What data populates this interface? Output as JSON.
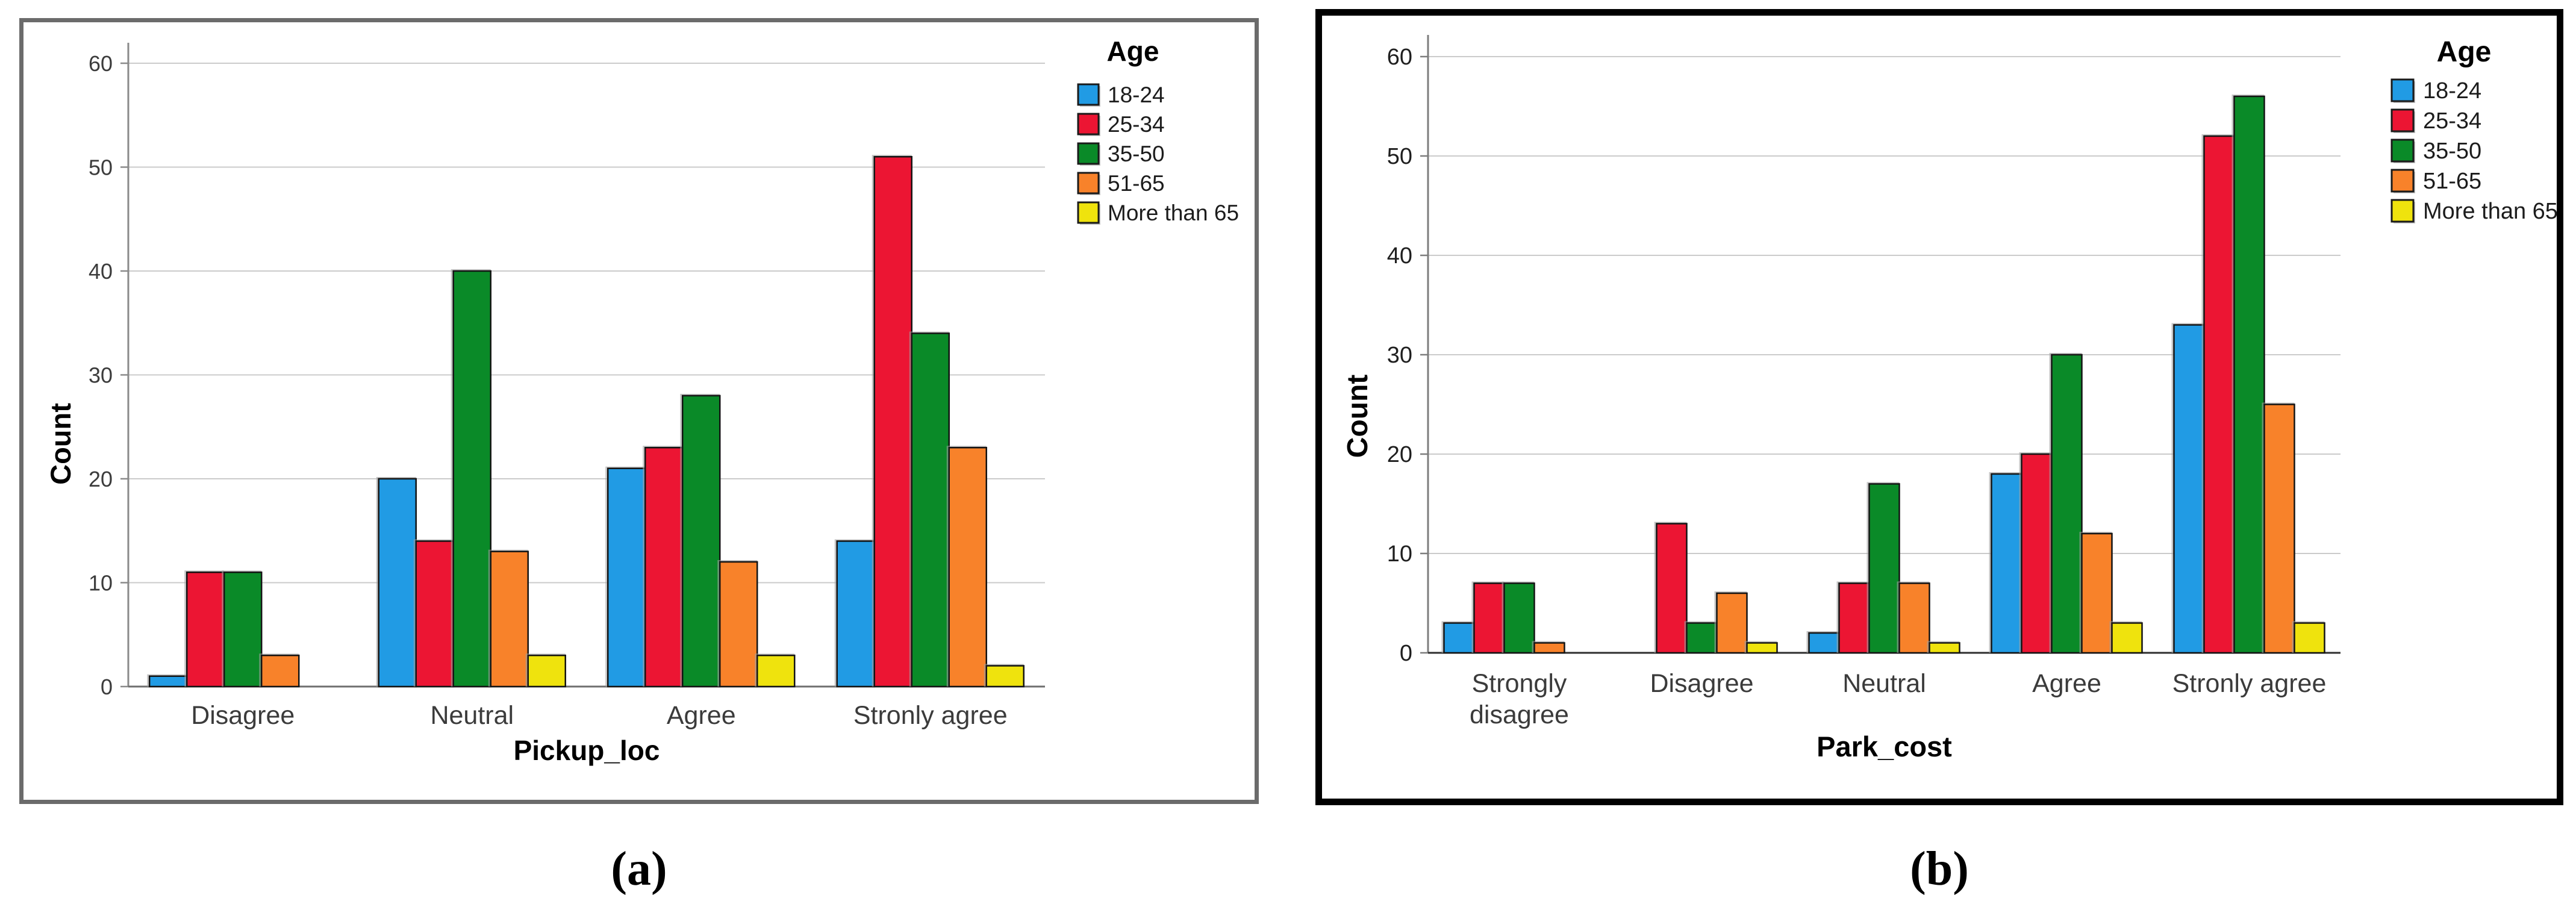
{
  "page": {
    "background": "#ffffff",
    "captions": {
      "a": "(a)",
      "b": "(b)"
    }
  },
  "chart_data": [
    {
      "type": "bar",
      "panel": "a",
      "title": "",
      "ylabel": "Count",
      "xlabel": "Pickup_loc",
      "ylim": [
        0,
        63
      ],
      "yticks": [
        0,
        10,
        20,
        30,
        40,
        50,
        60
      ],
      "grid": true,
      "legend_position": "right-top",
      "legend_title": "Age",
      "categories": [
        "Disagree",
        "Neutral",
        "Agree",
        "Stronly agree"
      ],
      "category_lines": [
        [
          "Disagree"
        ],
        [
          "Neutral"
        ],
        [
          "Agree"
        ],
        [
          "Stronly agree"
        ]
      ],
      "series": [
        {
          "name": "18-24",
          "color": "#219BE4",
          "values": [
            1,
            20,
            21,
            14
          ]
        },
        {
          "name": "25-34",
          "color": "#EC1533",
          "values": [
            11,
            14,
            23,
            51
          ]
        },
        {
          "name": "35-50",
          "color": "#0A8A28",
          "values": [
            11,
            40,
            28,
            34
          ]
        },
        {
          "name": "51-65",
          "color": "#F8822A",
          "values": [
            3,
            13,
            12,
            23
          ]
        },
        {
          "name": "More than 65",
          "color": "#EFE30D",
          "values": [
            0,
            3,
            3,
            2
          ]
        }
      ],
      "frame": {
        "color": "#6B6B6B"
      }
    },
    {
      "type": "bar",
      "panel": "b",
      "title": "",
      "ylabel": "Count",
      "xlabel": "Park_cost",
      "ylim": [
        0,
        63
      ],
      "yticks": [
        0,
        10,
        20,
        30,
        40,
        50,
        60
      ],
      "grid": true,
      "legend_position": "right-top",
      "legend_title": "Age",
      "categories": [
        "Strongly disagree",
        "Disagree",
        "Neutral",
        "Agree",
        "Stronly agree"
      ],
      "category_lines": [
        [
          "Strongly",
          "disagree"
        ],
        [
          "Disagree"
        ],
        [
          "Neutral"
        ],
        [
          "Agree"
        ],
        [
          "Stronly agree"
        ]
      ],
      "series": [
        {
          "name": "18-24",
          "color": "#219BE4",
          "values": [
            3,
            0,
            2,
            18,
            33
          ]
        },
        {
          "name": "25-34",
          "color": "#EC1533",
          "values": [
            7,
            13,
            7,
            20,
            52
          ]
        },
        {
          "name": "35-50",
          "color": "#0A8A28",
          "values": [
            7,
            3,
            17,
            30,
            56
          ]
        },
        {
          "name": "51-65",
          "color": "#F8822A",
          "values": [
            1,
            6,
            7,
            12,
            25
          ]
        },
        {
          "name": "More than 65",
          "color": "#EFE30D",
          "values": [
            0,
            1,
            1,
            3,
            3
          ]
        }
      ],
      "frame": {
        "color": "#000000"
      }
    }
  ]
}
